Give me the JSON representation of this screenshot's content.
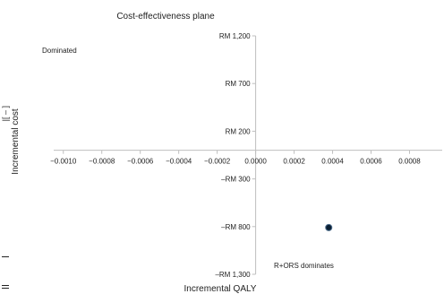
{
  "chart_data": {
    "type": "scatter",
    "title": "Cost-effectiveness plane",
    "xlabel": "Incremental QALY",
    "ylabel": "Incremental cost",
    "x_ticks": [
      -0.001,
      -0.0008,
      -0.0006,
      -0.0004,
      -0.0002,
      0.0,
      0.0002,
      0.0004,
      0.0006,
      0.0008
    ],
    "x_tick_labels": [
      "−0.0010",
      "−0.0008",
      "−0.0006",
      "−0.0004",
      "−0.0002",
      "0.0000",
      "0.0002",
      "0.0004",
      "0.0006",
      "0.0008"
    ],
    "y_ticks": [
      1200,
      700,
      200,
      -300,
      -800,
      -1300
    ],
    "y_tick_labels": [
      "RM 1,200",
      "RM 700",
      "RM 200",
      "–RM 300",
      "–RM 800",
      "–RM 1,300"
    ],
    "xlim": [
      -0.00105,
      0.00097
    ],
    "ylim": [
      -1300,
      1200
    ],
    "grid": false,
    "points": [
      {
        "x": 0.00038,
        "y": -810
      }
    ],
    "point_color": "#0b1f33",
    "point_edge_color": "#4a6a8a",
    "axis_color": "#bfbfbf",
    "annotations": [
      {
        "text": "Dominated",
        "quadrant": "top-left"
      },
      {
        "text": "R+ORS dominates",
        "quadrant": "bottom-right"
      }
    ]
  },
  "artifacts": {
    "left_edge_glyphs": "|[ – ]"
  }
}
